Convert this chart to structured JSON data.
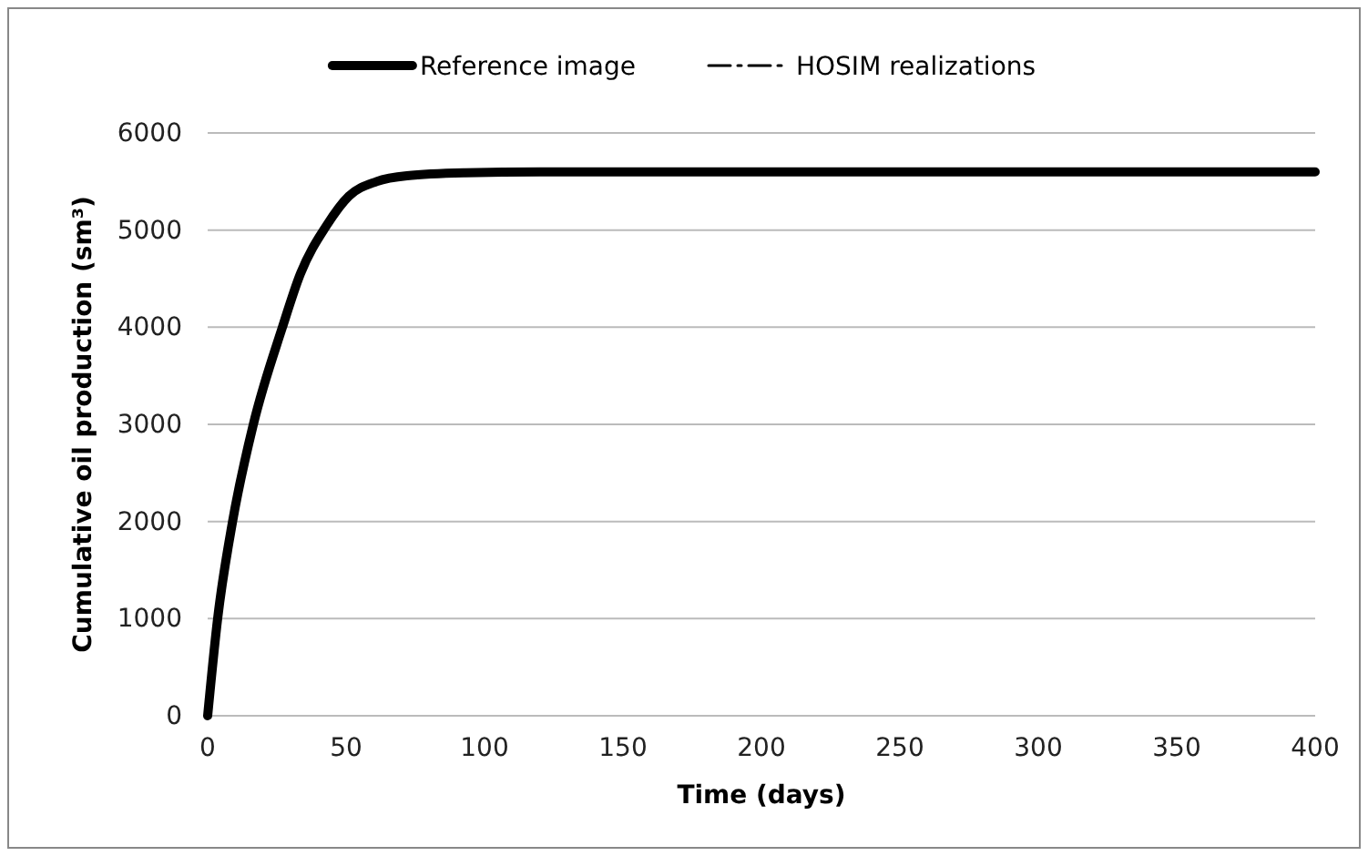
{
  "chart_data": {
    "type": "line",
    "xlabel": "Time (days)",
    "ylabel": "Cumulative oil production (sm³)",
    "x": [
      0,
      3.6,
      9,
      16.5,
      27,
      33.5,
      43,
      51,
      61,
      72,
      93,
      120,
      200,
      300,
      400
    ],
    "series": [
      {
        "name": "Reference image",
        "color": "#000000",
        "line_style": "solid",
        "values": [
          0,
          1000,
          2000,
          3000,
          4000,
          4550,
          5050,
          5350,
          5500,
          5560,
          5590,
          5600,
          5600,
          5600,
          5600
        ]
      },
      {
        "name": "HOSIM realizations",
        "color": "#000000",
        "line_style": "dashed",
        "values": [
          null,
          null,
          null,
          null,
          null,
          null,
          null,
          null,
          null,
          null,
          null,
          null,
          null,
          null,
          null
        ]
      }
    ],
    "xlim": [
      0,
      400
    ],
    "xticks": [
      0,
      50,
      100,
      150,
      200,
      250,
      300,
      350,
      400
    ],
    "ylim": [
      0,
      6000
    ],
    "yticks": [
      0,
      1000,
      2000,
      3000,
      4000,
      5000,
      6000
    ],
    "grid": "y",
    "legend": "top",
    "marker": "none"
  }
}
